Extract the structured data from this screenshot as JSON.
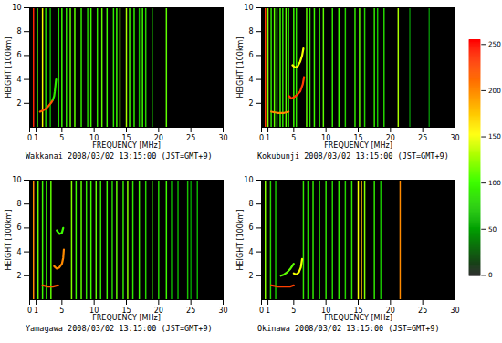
{
  "chart_data": [
    {
      "type": "heatmap",
      "title": "Wakkanai 2008/03/02 13:15:00 (JST=GMT+9)",
      "x_label": "FREQUENCY [MHz]",
      "y_label": "HEIGHT [100km]",
      "xlim": [
        0,
        30
      ],
      "ylim": [
        0,
        10
      ],
      "xticks": [
        0,
        1,
        5,
        10,
        15,
        20,
        25,
        30
      ],
      "yticks": [
        2,
        4,
        6,
        8,
        10
      ],
      "stripes": [
        [
          0.6,
          240
        ],
        [
          1.2,
          100
        ],
        [
          2.0,
          150
        ],
        [
          2.5,
          80
        ],
        [
          3.2,
          60
        ],
        [
          4.5,
          80
        ],
        [
          5.0,
          100
        ],
        [
          5.7,
          90
        ],
        [
          6.3,
          110
        ],
        [
          7.0,
          110
        ],
        [
          8.0,
          90
        ],
        [
          9.0,
          80
        ],
        [
          9.5,
          100
        ],
        [
          10.5,
          90
        ],
        [
          11.2,
          110
        ],
        [
          12.0,
          100
        ],
        [
          13.0,
          90
        ],
        [
          13.5,
          100
        ],
        [
          14.0,
          120
        ],
        [
          15.0,
          130
        ],
        [
          15.5,
          100
        ],
        [
          16.2,
          90
        ],
        [
          17.0,
          70
        ],
        [
          17.5,
          100
        ],
        [
          18.0,
          80
        ],
        [
          19.0,
          70
        ],
        [
          21.2,
          110
        ]
      ],
      "traces": [
        {
          "f": [
            1.6,
            2.0,
            2.4,
            2.8,
            3.1,
            3.4,
            3.6
          ],
          "h": [
            1.3,
            1.4,
            1.5,
            1.7,
            1.9,
            2.1,
            2.3
          ],
          "value": 220
        },
        {
          "f": [
            3.6,
            3.8,
            3.9,
            4.0,
            4.1
          ],
          "h": [
            2.3,
            2.6,
            3.0,
            3.5,
            4.0
          ],
          "value": 90
        }
      ]
    },
    {
      "type": "heatmap",
      "title": "Kokubunji 2008/03/02 13:15:00 (JST=GMT+9)",
      "x_label": "FREQUENCY [MHz]",
      "y_label": "HEIGHT [100km]",
      "xlim": [
        0,
        30
      ],
      "ylim": [
        0,
        10
      ],
      "xticks": [
        0,
        1,
        5,
        10,
        15,
        20,
        25,
        30
      ],
      "yticks": [
        2,
        4,
        6,
        8,
        10
      ],
      "stripes": [
        [
          0.6,
          230
        ],
        [
          1.0,
          120
        ],
        [
          1.5,
          90
        ],
        [
          2.0,
          110
        ],
        [
          2.4,
          80
        ],
        [
          2.9,
          100
        ],
        [
          3.3,
          90
        ],
        [
          3.8,
          110
        ],
        [
          4.2,
          80
        ],
        [
          5.0,
          100
        ],
        [
          5.4,
          90
        ],
        [
          7.0,
          110
        ],
        [
          7.5,
          90
        ],
        [
          8.2,
          100
        ],
        [
          9.0,
          90
        ],
        [
          9.6,
          110
        ],
        [
          11.0,
          90
        ],
        [
          12.0,
          100
        ],
        [
          13.0,
          80
        ],
        [
          14.5,
          90
        ],
        [
          15.2,
          110
        ],
        [
          16.0,
          80
        ],
        [
          17.5,
          90
        ],
        [
          18.0,
          70
        ],
        [
          19.0,
          80
        ],
        [
          21.2,
          130
        ],
        [
          23.0,
          40
        ],
        [
          26.0,
          40
        ]
      ],
      "traces": [
        {
          "f": [
            1.5,
            2.5,
            3.5,
            4.2
          ],
          "h": [
            1.3,
            1.2,
            1.2,
            1.3
          ],
          "value": 200
        },
        {
          "f": [
            4.3,
            4.6,
            5.0,
            5.5,
            6.0,
            6.4,
            6.6
          ],
          "h": [
            2.6,
            2.4,
            2.5,
            2.7,
            3.0,
            3.6,
            4.2
          ],
          "value": 230
        },
        {
          "f": [
            4.8,
            5.2,
            5.6,
            6.0,
            6.3,
            6.5
          ],
          "h": [
            5.2,
            5.0,
            5.1,
            5.5,
            6.0,
            6.6
          ],
          "value": 150
        }
      ]
    },
    {
      "type": "heatmap",
      "title": "Yamagawa 2008/03/02 13:15:00 (JST=GMT+9)",
      "x_label": "FREQUENCY [MHz]",
      "y_label": "HEIGHT [100km]",
      "xlim": [
        0,
        30
      ],
      "ylim": [
        0,
        10
      ],
      "xticks": [
        0,
        1,
        5,
        10,
        15,
        20,
        25,
        30
      ],
      "yticks": [
        2,
        4,
        6,
        8,
        10
      ],
      "stripes": [
        [
          0.6,
          200
        ],
        [
          1.3,
          110
        ],
        [
          2.0,
          100
        ],
        [
          2.6,
          90
        ],
        [
          3.3,
          110
        ],
        [
          6.5,
          120
        ],
        [
          7.2,
          100
        ],
        [
          8.0,
          110
        ],
        [
          8.8,
          90
        ],
        [
          9.5,
          100
        ],
        [
          10.3,
          110
        ],
        [
          11.0,
          90
        ],
        [
          12.0,
          100
        ],
        [
          12.8,
          80
        ],
        [
          13.5,
          110
        ],
        [
          14.5,
          90
        ],
        [
          15.2,
          120
        ],
        [
          16.0,
          90
        ],
        [
          17.0,
          100
        ],
        [
          18.0,
          80
        ],
        [
          19.0,
          90
        ],
        [
          20.0,
          80
        ],
        [
          21.2,
          100
        ],
        [
          22.0,
          60
        ],
        [
          23.0,
          60
        ],
        [
          24.5,
          70
        ],
        [
          25.0,
          50
        ],
        [
          26.0,
          60
        ]
      ],
      "traces": [
        {
          "f": [
            2.0,
            2.8,
            3.6,
            4.4
          ],
          "h": [
            1.2,
            1.1,
            1.1,
            1.2
          ],
          "value": 220
        },
        {
          "f": [
            3.8,
            4.2,
            4.6,
            5.0,
            5.2,
            5.3
          ],
          "h": [
            2.8,
            2.6,
            2.7,
            3.0,
            3.5,
            4.2
          ],
          "value": 200
        },
        {
          "f": [
            4.2,
            4.6,
            5.0,
            5.2
          ],
          "h": [
            5.8,
            5.5,
            5.6,
            6.0
          ],
          "value": 100
        }
      ]
    },
    {
      "type": "heatmap",
      "title": "Okinawa 2008/03/02 13:15:00 (JST=GMT+9)",
      "x_label": "FREQUENCY [MHz]",
      "y_label": "HEIGHT [100km]",
      "xlim": [
        0,
        30
      ],
      "ylim": [
        0,
        10
      ],
      "xticks": [
        0,
        1,
        5,
        10,
        15,
        20,
        25,
        30
      ],
      "yticks": [
        2,
        4,
        6,
        8,
        10
      ],
      "stripes": [
        [
          0.6,
          120
        ],
        [
          1.4,
          80
        ],
        [
          2.2,
          70
        ],
        [
          6.5,
          90
        ],
        [
          7.2,
          80
        ],
        [
          8.0,
          90
        ],
        [
          9.0,
          80
        ],
        [
          10.0,
          90
        ],
        [
          11.0,
          80
        ],
        [
          12.0,
          90
        ],
        [
          13.0,
          80
        ],
        [
          14.0,
          90
        ],
        [
          15.0,
          150
        ],
        [
          15.5,
          180
        ],
        [
          16.0,
          120
        ],
        [
          17.5,
          90
        ],
        [
          18.5,
          70
        ],
        [
          21.5,
          200
        ]
      ],
      "traces": [
        {
          "f": [
            1.5,
            2.5,
            3.5,
            4.5,
            5.0
          ],
          "h": [
            1.2,
            1.1,
            1.1,
            1.1,
            1.2
          ],
          "value": 230
        },
        {
          "f": [
            3.0,
            3.5,
            4.0,
            4.5,
            5.0
          ],
          "h": [
            2.0,
            2.1,
            2.3,
            2.6,
            3.0
          ],
          "value": 110
        },
        {
          "f": [
            5.0,
            5.4,
            5.8,
            6.1,
            6.3
          ],
          "h": [
            2.2,
            2.1,
            2.3,
            2.7,
            3.4
          ],
          "value": 150
        }
      ]
    }
  ],
  "colorbar": {
    "range": [
      0,
      255
    ],
    "ticks": [
      0,
      50,
      100,
      150,
      200,
      250
    ],
    "colors": [
      "#202020",
      "#00a000",
      "#40ff00",
      "#ffff00",
      "#ff8000",
      "#ff0000"
    ]
  }
}
